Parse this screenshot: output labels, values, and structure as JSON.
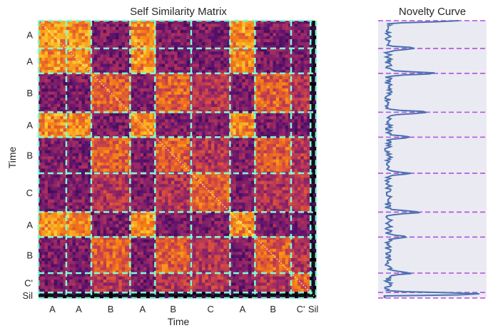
{
  "chart_data": [
    {
      "type": "heatmap",
      "title": "Self Similarity Matrix",
      "xlabel": "Time",
      "ylabel": "Time",
      "colormap": "inferno",
      "segment_labels": [
        "A",
        "A",
        "B",
        "A",
        "B",
        "C",
        "A",
        "B",
        "C'",
        "Sil"
      ],
      "segment_boundaries": [
        0,
        0.1,
        0.19,
        0.33,
        0.42,
        0.55,
        0.69,
        0.78,
        0.91,
        0.98,
        1.0
      ],
      "boundary_color": "#7fffd4"
    },
    {
      "type": "line",
      "title": "Novelty Curve",
      "orientation": "vertical",
      "color": "#4c72b0",
      "boundary_color": "#b04fe0",
      "background": "#eaeaf2",
      "boundaries": [
        0,
        0.1,
        0.19,
        0.33,
        0.42,
        0.55,
        0.69,
        0.78,
        0.91,
        0.98,
        1.0
      ],
      "peaks": [
        {
          "t": 0.0,
          "v": 0.75
        },
        {
          "t": 0.1,
          "v": 0.3
        },
        {
          "t": 0.19,
          "v": 0.48
        },
        {
          "t": 0.33,
          "v": 0.42
        },
        {
          "t": 0.42,
          "v": 0.22
        },
        {
          "t": 0.55,
          "v": 0.22
        },
        {
          "t": 0.69,
          "v": 0.34
        },
        {
          "t": 0.78,
          "v": 0.18
        },
        {
          "t": 0.91,
          "v": 0.22
        },
        {
          "t": 0.985,
          "v": 1.0
        }
      ]
    }
  ]
}
